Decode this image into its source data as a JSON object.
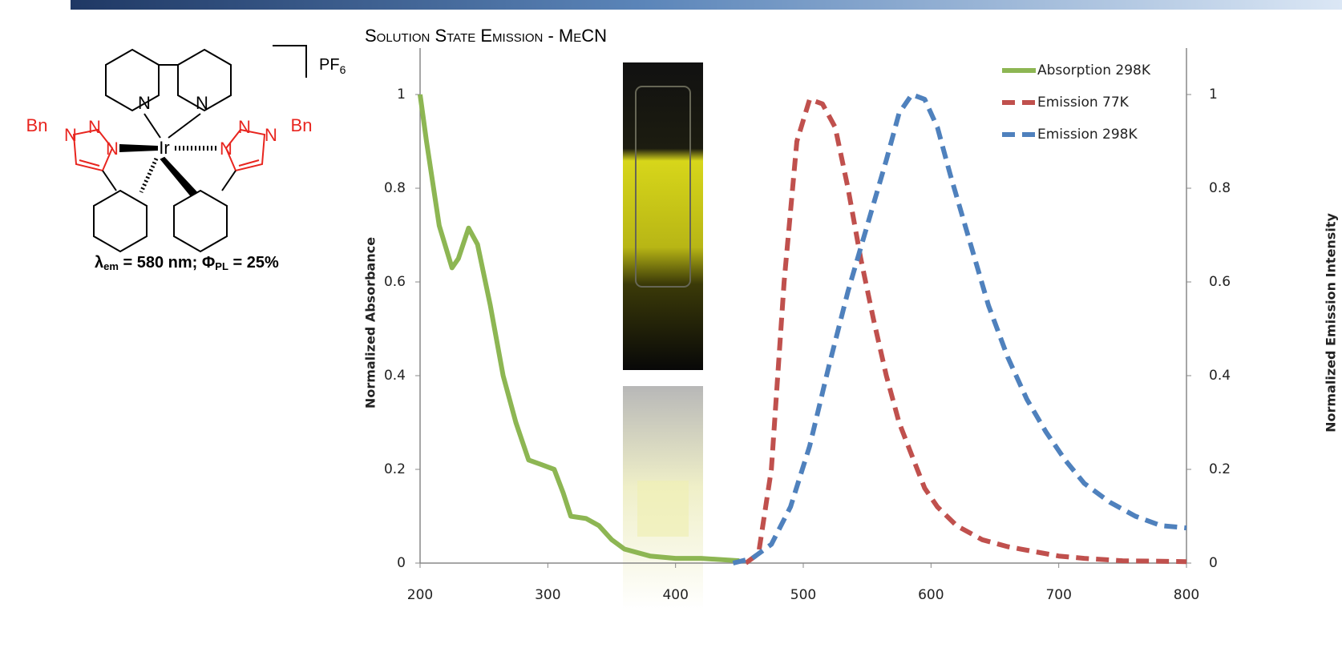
{
  "structure": {
    "atoms": [
      "N",
      "N",
      "Ir",
      "N",
      "N",
      "N",
      "N",
      "N",
      "N",
      "Bn",
      "Bn"
    ],
    "counterion": "PF",
    "counterion_subscript": "6"
  },
  "caption": [
    "λ",
    "em",
    " = 580 nm; Φ",
    "PL",
    " = 25%"
  ],
  "chart_data": {
    "type": "line",
    "title": "Solution State Emission - MeCN",
    "ylabel": "Normalized Absorbance",
    "y2label": "Normalized Emission Intensity",
    "xlim": [
      200,
      800
    ],
    "xticks": [
      200,
      300,
      400,
      500,
      600,
      700,
      800
    ],
    "ylim": [
      0,
      1
    ],
    "yticks": [
      0,
      0.2,
      0.4,
      0.6,
      0.8,
      1
    ],
    "y2lim": [
      0,
      1
    ],
    "y2ticks": [
      0,
      0.2,
      0.4,
      0.6,
      0.8,
      1
    ],
    "legend": "top-right",
    "series": [
      {
        "name": "Absorption 298K",
        "color": "#8db653",
        "line_style": "solid",
        "x": [
          200,
          205,
          215,
          225,
          230,
          238,
          245,
          255,
          265,
          275,
          285,
          295,
          305,
          312,
          318,
          330,
          340,
          350,
          360,
          380,
          400,
          420,
          450
        ],
        "values": [
          1.0,
          0.9,
          0.72,
          0.63,
          0.65,
          0.715,
          0.68,
          0.55,
          0.4,
          0.3,
          0.22,
          0.21,
          0.2,
          0.15,
          0.1,
          0.095,
          0.08,
          0.05,
          0.03,
          0.015,
          0.01,
          0.01,
          0.005
        ]
      },
      {
        "name": "Emission 77K",
        "color": "#c0504d",
        "line_style": "dashed",
        "axis": "y2",
        "x": [
          455,
          465,
          475,
          485,
          495,
          505,
          515,
          525,
          535,
          545,
          555,
          565,
          575,
          585,
          595,
          605,
          620,
          640,
          660,
          680,
          700,
          720,
          750,
          800
        ],
        "values": [
          0,
          0.02,
          0.2,
          0.6,
          0.9,
          0.99,
          0.98,
          0.93,
          0.8,
          0.65,
          0.52,
          0.4,
          0.3,
          0.23,
          0.16,
          0.12,
          0.08,
          0.05,
          0.035,
          0.025,
          0.015,
          0.01,
          0.005,
          0.003
        ]
      },
      {
        "name": "Emission 298K",
        "color": "#4f81bd",
        "line_style": "dashed",
        "axis": "y2",
        "x": [
          445,
          460,
          475,
          490,
          505,
          520,
          535,
          550,
          565,
          575,
          585,
          595,
          605,
          615,
          630,
          645,
          660,
          675,
          690,
          705,
          720,
          740,
          760,
          780,
          800
        ],
        "values": [
          0,
          0.01,
          0.04,
          0.12,
          0.25,
          0.42,
          0.58,
          0.72,
          0.86,
          0.96,
          1.0,
          0.99,
          0.93,
          0.83,
          0.69,
          0.55,
          0.44,
          0.35,
          0.28,
          0.22,
          0.17,
          0.13,
          0.1,
          0.08,
          0.075
        ]
      }
    ]
  }
}
